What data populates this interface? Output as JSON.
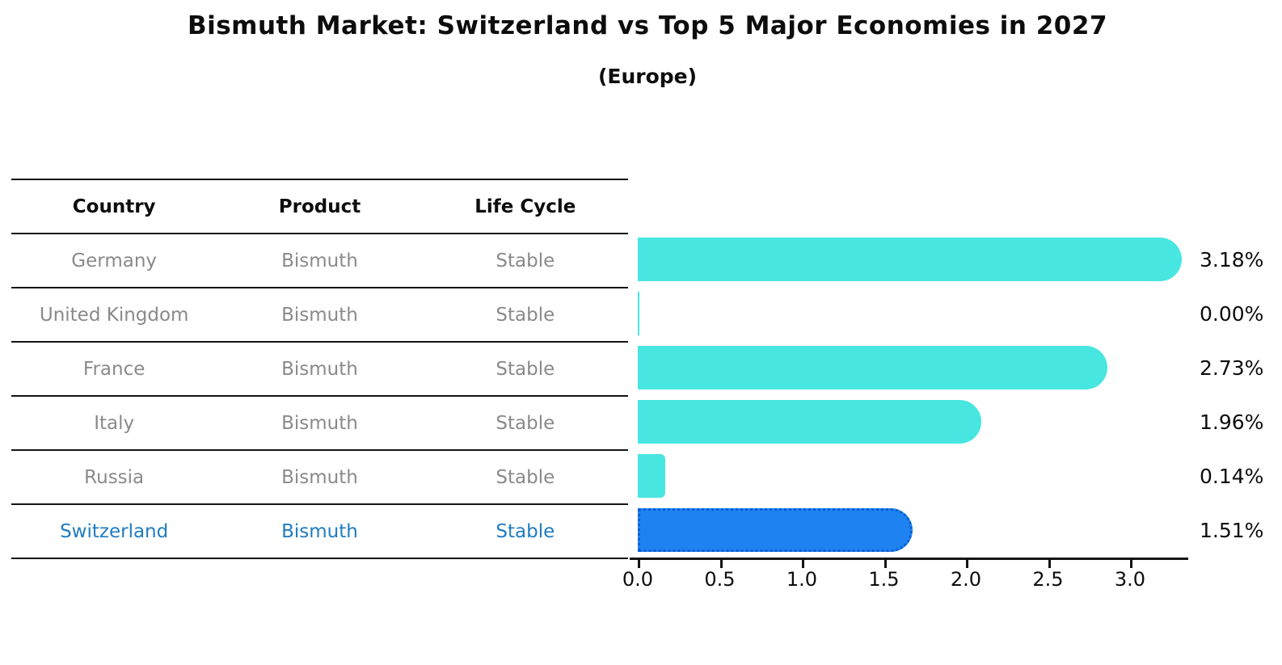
{
  "header": {
    "title": "Bismuth Market: Switzerland vs Top 5 Major Economies in 2027",
    "subtitle": "(Europe)"
  },
  "table": {
    "columns": [
      "Country",
      "Product",
      "Life Cycle"
    ],
    "rows": [
      {
        "country": "Germany",
        "product": "Bismuth",
        "life_cycle": "Stable",
        "highlight": false
      },
      {
        "country": "United Kingdom",
        "product": "Bismuth",
        "life_cycle": "Stable",
        "highlight": false
      },
      {
        "country": "France",
        "product": "Bismuth",
        "life_cycle": "Stable",
        "highlight": false
      },
      {
        "country": "Italy",
        "product": "Bismuth",
        "life_cycle": "Stable",
        "highlight": false
      },
      {
        "country": "Russia",
        "product": "Bismuth",
        "life_cycle": "Stable",
        "highlight": false
      },
      {
        "country": "Switzerland",
        "product": "Bismuth",
        "life_cycle": "Stable",
        "highlight": true
      }
    ]
  },
  "chart_data": {
    "type": "bar",
    "orientation": "horizontal",
    "title": "Bismuth Market: Switzerland vs Top 5 Major Economies in 2027 (Europe)",
    "categories": [
      "Germany",
      "United Kingdom",
      "France",
      "Italy",
      "Russia",
      "Switzerland"
    ],
    "values": [
      3.18,
      0.0,
      2.73,
      1.96,
      0.14,
      1.51
    ],
    "value_labels": [
      "3.18%",
      "0.00%",
      "2.73%",
      "1.96%",
      "0.14%",
      "1.51%"
    ],
    "x_ticks": [
      "0.0",
      "0.5",
      "1.0",
      "1.5",
      "2.0",
      "2.5",
      "3.0"
    ],
    "xlim": [
      0,
      3.35
    ],
    "grid": false,
    "legend": "none",
    "highlight_index": 5
  },
  "colors": {
    "bar": "#48e6e1",
    "highlight_bar": "#1e82f0",
    "highlight_bar_edge": "#0e5ed6",
    "highlight_text": "#1f7cc2",
    "table_text": "#8a8a8a",
    "heading_text": "#0d0d0d"
  }
}
